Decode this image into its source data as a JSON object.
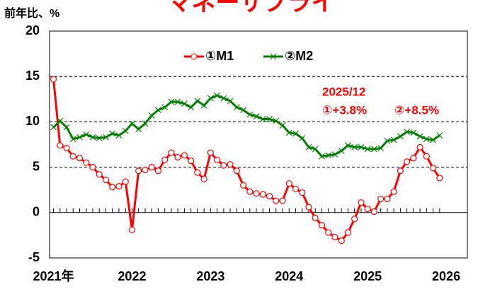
{
  "chart_data": {
    "type": "line",
    "title": "マネーサプライ",
    "y_label": "前年比、%",
    "x": [
      2021,
      2021.083,
      2021.167,
      2021.25,
      2021.333,
      2021.417,
      2021.5,
      2021.583,
      2021.667,
      2021.75,
      2021.833,
      2021.917,
      2022,
      2022.083,
      2022.167,
      2022.25,
      2022.333,
      2022.417,
      2022.5,
      2022.583,
      2022.667,
      2022.75,
      2022.833,
      2022.917,
      2023,
      2023.083,
      2023.167,
      2023.25,
      2023.333,
      2023.417,
      2023.5,
      2023.583,
      2023.667,
      2023.75,
      2023.833,
      2023.917,
      2024,
      2024.083,
      2024.167,
      2024.25,
      2024.333,
      2024.417,
      2024.5,
      2024.583,
      2024.667,
      2024.75,
      2024.833,
      2024.917,
      2025,
      2025.083,
      2025.167,
      2025.25,
      2025.333,
      2025.417,
      2025.5,
      2025.583,
      2025.667,
      2025.75,
      2025.833,
      2025.917
    ],
    "series": [
      {
        "name": "①M1",
        "color": "#ff0000",
        "marker": "circle",
        "values": [
          14.7,
          7.4,
          7.1,
          6.2,
          6.0,
          5.5,
          5.0,
          4.2,
          3.6,
          2.8,
          2.9,
          3.4,
          -1.9,
          4.6,
          4.7,
          5.0,
          4.6,
          5.8,
          6.6,
          6.1,
          6.3,
          5.7,
          4.4,
          3.7,
          6.6,
          5.8,
          5.2,
          5.3,
          4.6,
          3.0,
          2.3,
          2.1,
          2.0,
          1.8,
          1.3,
          1.3,
          3.2,
          2.6,
          2.2,
          0.6,
          -0.6,
          -1.4,
          -2.2,
          -2.7,
          -3.1,
          -2.2,
          -0.7,
          1.1,
          0.4,
          0.1,
          1.5,
          1.5,
          2.3,
          4.6,
          5.6,
          6.0,
          7.2,
          6.2,
          4.9,
          3.8
        ]
      },
      {
        "name": "②M2",
        "color": "#008000",
        "marker": "x",
        "values": [
          9.4,
          10.1,
          9.4,
          8.1,
          8.3,
          8.6,
          8.3,
          8.2,
          8.3,
          8.7,
          8.5,
          9.0,
          9.8,
          9.2,
          9.8,
          10.7,
          11.3,
          11.6,
          12.2,
          12.2,
          12.0,
          11.6,
          12.3,
          11.8,
          12.6,
          12.9,
          12.6,
          12.3,
          11.6,
          11.3,
          10.8,
          10.6,
          10.3,
          10.3,
          10.1,
          9.6,
          8.8,
          8.7,
          8.2,
          7.2,
          7.0,
          6.2,
          6.3,
          6.4,
          6.8,
          7.4,
          7.2,
          7.2,
          7.0,
          7.0,
          7.1,
          7.9,
          8.0,
          8.4,
          8.9,
          8.8,
          8.4,
          8.1,
          8.0,
          8.5
        ]
      }
    ],
    "annotations": [
      "2025/12",
      "①+3.8%",
      "②+8.5%"
    ],
    "xlim": [
      2020.95,
      2026.27
    ],
    "xticks": [
      {
        "value": 2021,
        "label": "2021年"
      },
      2022,
      2023,
      2024,
      2025,
      2026
    ],
    "ylim": [
      -5,
      20
    ],
    "yticks": [
      -5,
      0,
      5,
      10,
      15,
      20
    ],
    "grid": true
  }
}
